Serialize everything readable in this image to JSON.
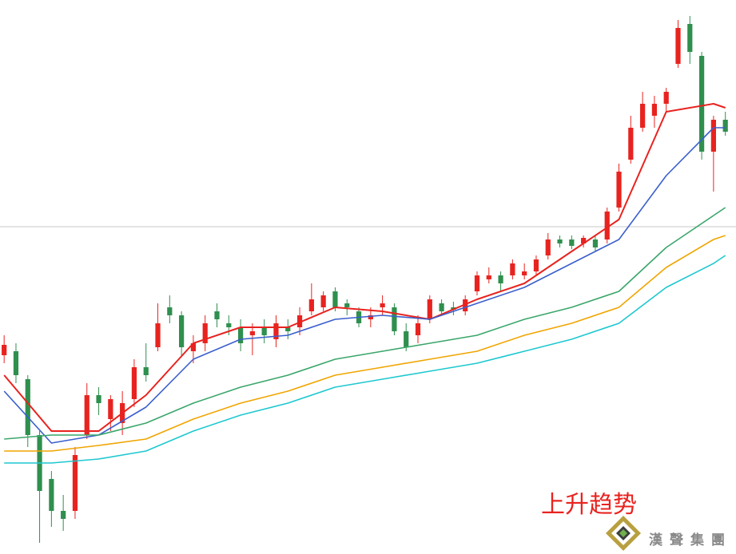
{
  "chart_data": {
    "type": "candlestick",
    "xlim": [
      -0.35,
      61.9
    ],
    "ylim": [
      0,
      694
    ],
    "up_color": "#e8231f",
    "down_color": "#2f8f4e",
    "candles": {
      "x": [
        0,
        1,
        2,
        3,
        4,
        5,
        6,
        7,
        8,
        9,
        10,
        11,
        12,
        13,
        14,
        15,
        16,
        17,
        18,
        19,
        20,
        21,
        22,
        23,
        24,
        25,
        26,
        27,
        28,
        29,
        30,
        31,
        32,
        33,
        34,
        35,
        36,
        37,
        38,
        39,
        40,
        41,
        42,
        43,
        44,
        45,
        46,
        47,
        48,
        49,
        50,
        51,
        52,
        53,
        54,
        55,
        56,
        57,
        58,
        59,
        60,
        61
      ],
      "open": [
        249,
        254,
        219,
        149,
        94,
        54,
        54,
        149,
        199,
        169,
        164,
        194,
        234,
        259,
        309,
        299,
        254,
        264,
        304,
        289,
        284,
        274,
        284,
        269,
        284,
        284,
        304,
        309,
        329,
        314,
        304,
        294,
        309,
        309,
        279,
        274,
        294,
        314,
        309,
        304,
        329,
        344,
        349,
        349,
        349,
        354,
        374,
        394,
        394,
        389,
        394,
        394,
        434,
        494,
        534,
        549,
        564,
        614,
        664,
        624,
        504,
        544
      ],
      "high": [
        274,
        264,
        224,
        154,
        104,
        74,
        134,
        214,
        209,
        199,
        204,
        244,
        264,
        314,
        324,
        304,
        274,
        299,
        314,
        299,
        294,
        289,
        294,
        299,
        294,
        309,
        339,
        329,
        334,
        319,
        309,
        309,
        324,
        314,
        289,
        299,
        324,
        319,
        316,
        324,
        354,
        359,
        354,
        369,
        364,
        374,
        402,
        399,
        399,
        399,
        399,
        434,
        489,
        549,
        579,
        574,
        584,
        669,
        674,
        629,
        549,
        554
      ],
      "low": [
        239,
        214,
        134,
        14,
        34,
        29,
        44,
        144,
        174,
        154,
        149,
        184,
        216,
        254,
        289,
        249,
        239,
        254,
        284,
        274,
        254,
        249,
        264,
        259,
        269,
        274,
        299,
        304,
        304,
        299,
        284,
        284,
        299,
        274,
        254,
        264,
        289,
        299,
        299,
        299,
        324,
        339,
        329,
        344,
        344,
        349,
        369,
        384,
        382,
        384,
        379,
        389,
        429,
        489,
        529,
        534,
        554,
        609,
        614,
        494,
        454,
        524
      ],
      "close": [
        262,
        224,
        149,
        79,
        54,
        44,
        124,
        199,
        189,
        194,
        189,
        234,
        224,
        289,
        299,
        259,
        264,
        289,
        294,
        284,
        264,
        279,
        274,
        289,
        279,
        299,
        319,
        324,
        309,
        309,
        289,
        299,
        314,
        279,
        259,
        289,
        319,
        304,
        306,
        319,
        349,
        349,
        339,
        364,
        354,
        369,
        394,
        389,
        386,
        396,
        384,
        429,
        479,
        534,
        564,
        564,
        579,
        659,
        629,
        504,
        544,
        529
      ]
    },
    "reference_line": 410,
    "series": [
      {
        "color": "#e8231f",
        "x": [
          0,
          4,
          8,
          12,
          16,
          20,
          24,
          28,
          32,
          36,
          40,
          44,
          48,
          52,
          56,
          60,
          61
        ],
        "values": [
          224,
          154,
          154,
          199,
          264,
          284,
          284,
          309,
          304,
          294,
          319,
          339,
          379,
          419,
          554,
          564,
          559
        ]
      },
      {
        "color": "#3a5fcd",
        "x": [
          0,
          4,
          8,
          12,
          16,
          20,
          24,
          28,
          32,
          36,
          40,
          44,
          48,
          52,
          56,
          60,
          61
        ],
        "values": [
          204,
          139,
          149,
          184,
          244,
          269,
          274,
          294,
          299,
          294,
          314,
          334,
          364,
          394,
          474,
          534,
          534
        ]
      },
      {
        "color": "#3aa66a",
        "x": [
          0,
          4,
          8,
          12,
          16,
          20,
          24,
          28,
          32,
          36,
          40,
          44,
          48,
          52,
          56,
          60,
          61
        ],
        "values": [
          144,
          149,
          149,
          164,
          189,
          209,
          224,
          244,
          254,
          264,
          274,
          294,
          309,
          329,
          384,
          424,
          434
        ]
      },
      {
        "color": "#f0a500",
        "x": [
          0,
          4,
          8,
          12,
          16,
          20,
          24,
          28,
          32,
          36,
          40,
          44,
          48,
          52,
          56,
          60,
          61
        ],
        "values": [
          129,
          129,
          136,
          144,
          169,
          189,
          204,
          224,
          234,
          244,
          254,
          274,
          289,
          309,
          359,
          394,
          399
        ]
      },
      {
        "color": "#1ec8d0",
        "x": [
          0,
          4,
          8,
          12,
          16,
          20,
          24,
          28,
          32,
          36,
          40,
          44,
          48,
          52,
          56,
          60,
          61
        ],
        "values": [
          114,
          114,
          119,
          129,
          154,
          174,
          189,
          209,
          219,
          229,
          239,
          254,
          269,
          289,
          334,
          364,
          374
        ]
      }
    ],
    "annotation": "上升趋势",
    "logo_text": "漢聲集團"
  }
}
